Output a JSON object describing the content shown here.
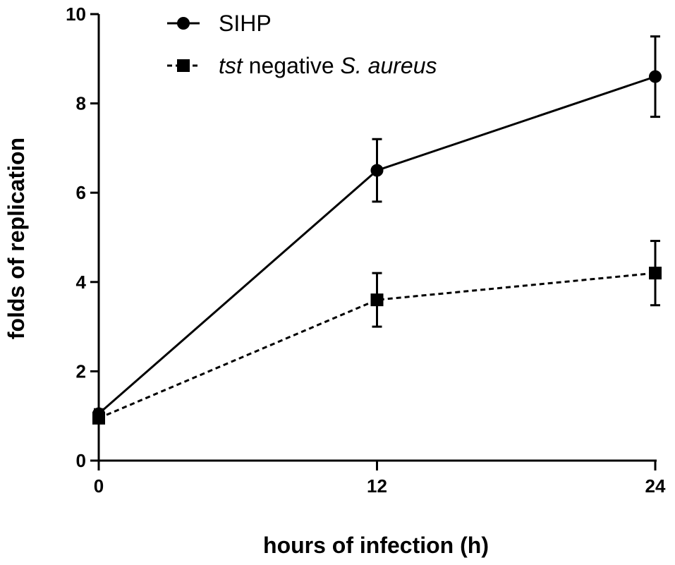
{
  "chart_data": {
    "type": "line",
    "title": "",
    "xlabel": "hours of infection (h)",
    "ylabel": "folds of replication",
    "x": [
      0,
      12,
      24
    ],
    "xlim": [
      0,
      24
    ],
    "ylim": [
      0,
      10
    ],
    "x_ticks": [
      "0",
      "12",
      "24"
    ],
    "y_ticks": [
      "0",
      "2",
      "4",
      "6",
      "8",
      "10"
    ],
    "grid": false,
    "legend_position": "top-left",
    "series": [
      {
        "name": "SIHP",
        "values": [
          1.05,
          6.5,
          8.6
        ],
        "errors": [
          0.1,
          0.7,
          0.9
        ],
        "marker": "circle",
        "line_style": "solid",
        "color": "#000000"
      },
      {
        "name": "tst negative S. aureus",
        "values": [
          0.95,
          3.6,
          4.2
        ],
        "errors": [
          0.1,
          0.6,
          0.72
        ],
        "marker": "square",
        "line_style": "dotted",
        "color": "#000000"
      }
    ],
    "legend": {
      "entries": [
        {
          "parts": [
            {
              "text": "SIHP",
              "italic": false
            }
          ]
        },
        {
          "parts": [
            {
              "text": "tst",
              "italic": true
            },
            {
              "text": " negative ",
              "italic": false
            },
            {
              "text": "S. aureus",
              "italic": true
            }
          ]
        }
      ]
    }
  }
}
